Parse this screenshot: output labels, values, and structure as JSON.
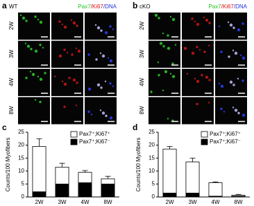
{
  "panels": [
    {
      "label": "a",
      "genotype": "WT",
      "channels": [
        "Pax7",
        "/Ki67",
        "/DNA"
      ],
      "rows": [
        "2W",
        "3W",
        "4W",
        "8W"
      ]
    },
    {
      "label": "b",
      "genotype": "cKO",
      "channels": [
        "Pax7",
        "/Ki67",
        "/DNA"
      ],
      "rows": [
        "2W",
        "3W",
        "4W",
        "8W"
      ]
    }
  ],
  "chart_data": [
    {
      "type": "bar",
      "stacked": true,
      "panel_label": "c",
      "y_label": "Counts/100 Myofibers",
      "categories": [
        "2W",
        "3W",
        "4W",
        "8W"
      ],
      "ylim": [
        0,
        25
      ],
      "yticks": [
        0,
        5,
        10,
        15,
        20,
        25
      ],
      "legend": "upper right",
      "series": [
        {
          "name": "Pax7⁺;Ki67⁻",
          "color": "#000000",
          "values": [
            2,
            5,
            5.5,
            5
          ],
          "errors": [
            0.5,
            0.7,
            1.5,
            0.8
          ]
        },
        {
          "name": "Pax7⁺;Ki67⁺",
          "color": "#ffffff",
          "values": [
            17.5,
            6.5,
            4,
            2
          ],
          "errors": [
            3,
            1.5,
            0.7,
            1
          ]
        }
      ]
    },
    {
      "type": "bar",
      "stacked": true,
      "panel_label": "d",
      "y_label": "Counts/100 Myofibers",
      "categories": [
        "2W",
        "3W",
        "4W",
        "8W"
      ],
      "ylim": [
        0,
        25
      ],
      "yticks": [
        0,
        5,
        10,
        15,
        20,
        25
      ],
      "legend": "upper right",
      "series": [
        {
          "name": "Pax7⁺;Ki67⁻",
          "color": "#000000",
          "values": [
            1.5,
            1.5,
            0.3,
            0.3
          ],
          "errors": [
            0.5,
            0.5,
            0.1,
            0.1
          ]
        },
        {
          "name": "Pax7⁺;Ki67⁺",
          "color": "#ffffff",
          "values": [
            17,
            12,
            5.2,
            0.4
          ],
          "errors": [
            1,
            1.5,
            0.3,
            0.3
          ]
        }
      ]
    }
  ]
}
